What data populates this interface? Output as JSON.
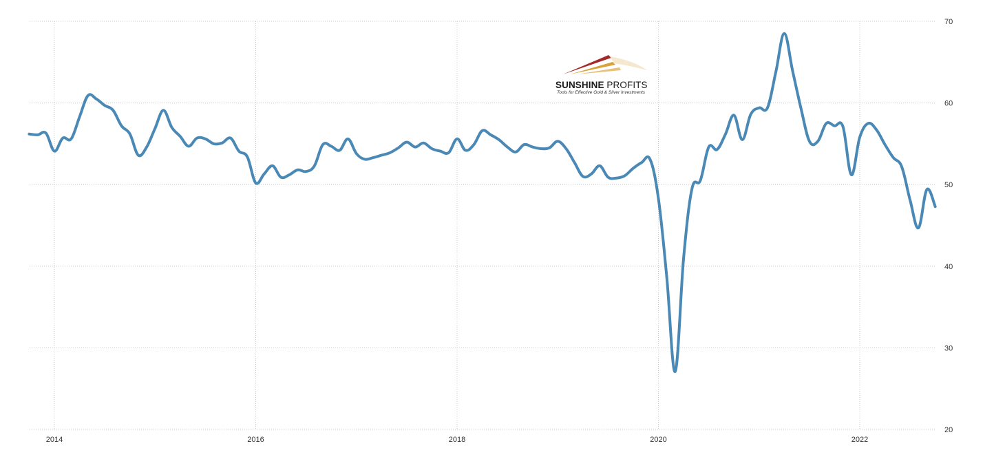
{
  "logo": {
    "name_bold": "SUNSHINE",
    "name_rest": "PROFITS",
    "tagline": "Tools for Effective Gold & Silver Investments"
  },
  "colors": {
    "line": "#4a89b5",
    "logo_red": "#a3292b",
    "logo_gold": "#d9a23a"
  },
  "chart_data": {
    "type": "line",
    "title": "",
    "xlabel": "",
    "ylabel": "",
    "ylim": [
      20,
      70
    ],
    "y_ticks": [
      "70",
      "60",
      "50",
      "40",
      "30",
      "20"
    ],
    "y_tick_values": [
      70,
      60,
      50,
      40,
      30,
      20
    ],
    "x_ticks": [
      "2014",
      "2016",
      "2018",
      "2020",
      "2022"
    ],
    "x_tick_values": [
      "2014-01",
      "2016-01",
      "2018-01",
      "2020-01",
      "2022-01"
    ],
    "x_range": [
      "2013-09",
      "2022-12"
    ],
    "grid": true,
    "y_axis_position": "right",
    "series": [
      {
        "x": [
          "2013-10",
          "2013-11",
          "2013-12",
          "2014-01",
          "2014-02",
          "2014-03",
          "2014-04",
          "2014-05",
          "2014-06",
          "2014-07",
          "2014-08",
          "2014-09",
          "2014-10",
          "2014-11",
          "2014-12",
          "2015-01",
          "2015-02",
          "2015-03",
          "2015-04",
          "2015-05",
          "2015-06",
          "2015-07",
          "2015-08",
          "2015-09",
          "2015-10",
          "2015-11",
          "2015-12",
          "2016-01",
          "2016-02",
          "2016-03",
          "2016-04",
          "2016-05",
          "2016-06",
          "2016-07",
          "2016-08",
          "2016-09",
          "2016-10",
          "2016-11",
          "2016-12",
          "2017-01",
          "2017-02",
          "2017-03",
          "2017-04",
          "2017-05",
          "2017-06",
          "2017-07",
          "2017-08",
          "2017-09",
          "2017-10",
          "2017-11",
          "2017-12",
          "2018-01",
          "2018-02",
          "2018-03",
          "2018-04",
          "2018-05",
          "2018-06",
          "2018-07",
          "2018-08",
          "2018-09",
          "2018-10",
          "2018-11",
          "2018-12",
          "2019-01",
          "2019-02",
          "2019-03",
          "2019-04",
          "2019-05",
          "2019-06",
          "2019-07",
          "2019-08",
          "2019-09",
          "2019-10",
          "2019-11",
          "2019-12",
          "2020-01",
          "2020-02",
          "2020-03",
          "2020-04",
          "2020-05",
          "2020-06",
          "2020-07",
          "2020-08",
          "2020-09",
          "2020-10",
          "2020-11",
          "2020-12",
          "2021-01",
          "2021-02",
          "2021-03",
          "2021-04",
          "2021-05",
          "2021-06",
          "2021-07",
          "2021-08",
          "2021-09",
          "2021-10",
          "2021-11",
          "2021-12",
          "2022-01",
          "2022-02",
          "2022-03",
          "2022-04",
          "2022-05",
          "2022-06",
          "2022-07",
          "2022-08",
          "2022-09",
          "2022-10"
        ],
        "values": [
          56.2,
          56.1,
          56.3,
          54.1,
          55.7,
          55.6,
          58.3,
          60.9,
          60.5,
          59.7,
          59.1,
          57.2,
          56.2,
          53.6,
          54.6,
          56.9,
          59.1,
          57.0,
          55.9,
          54.7,
          55.7,
          55.6,
          55.0,
          55.1,
          55.7,
          54.1,
          53.4,
          50.2,
          51.3,
          52.3,
          50.9,
          51.2,
          51.8,
          51.6,
          52.3,
          54.9,
          54.7,
          54.2,
          55.6,
          53.8,
          53.1,
          53.3,
          53.6,
          53.9,
          54.5,
          55.2,
          54.6,
          55.1,
          54.4,
          54.1,
          53.9,
          55.6,
          54.2,
          54.9,
          56.6,
          56.1,
          55.5,
          54.6,
          54.0,
          54.9,
          54.6,
          54.4,
          54.5,
          55.3,
          54.4,
          52.7,
          51.0,
          51.3,
          52.3,
          50.9,
          50.8,
          51.1,
          52.0,
          52.7,
          53.1,
          48.3,
          38.6,
          27.1,
          41.0,
          49.5,
          50.5,
          54.6,
          54.3,
          56.2,
          58.5,
          55.5,
          58.6,
          59.4,
          59.4,
          63.8,
          68.5,
          63.9,
          59.3,
          55.3,
          55.3,
          57.5,
          57.2,
          57.1,
          51.2,
          55.8,
          57.5,
          56.7,
          54.9,
          53.3,
          52.2,
          48.1,
          44.7,
          49.4,
          47.3
        ]
      }
    ]
  }
}
